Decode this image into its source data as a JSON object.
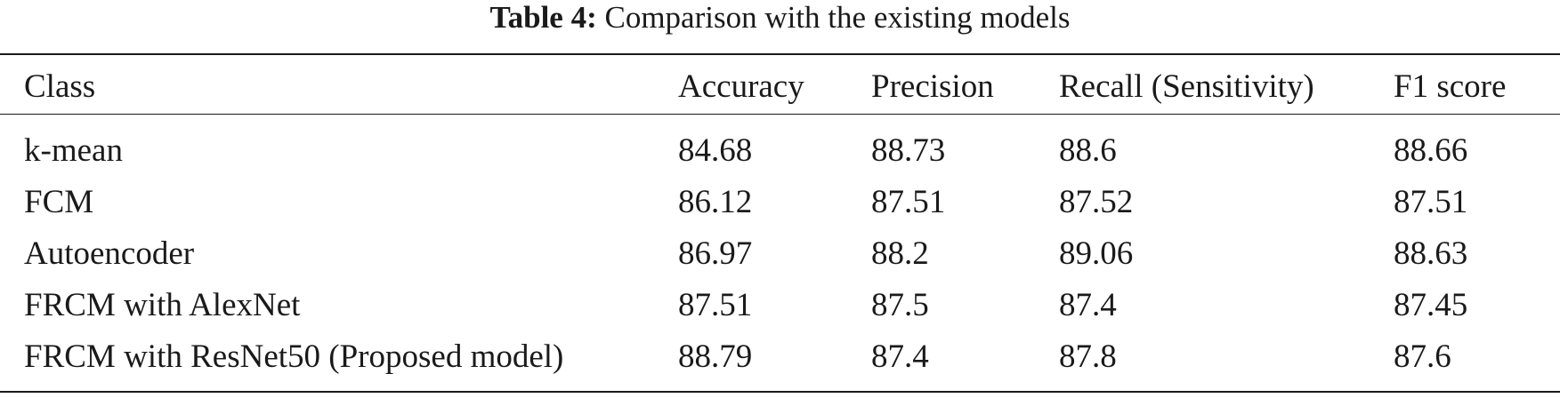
{
  "caption": {
    "label": "Table 4:",
    "text": "Comparison with the existing models"
  },
  "table": {
    "headers": [
      "Class",
      "Accuracy",
      "Precision",
      "Recall (Sensitivity)",
      "F1 score"
    ],
    "rows": [
      [
        "k-mean",
        "84.68",
        "88.73",
        "88.6",
        "88.66"
      ],
      [
        "FCM",
        "86.12",
        "87.51",
        "87.52",
        "87.51"
      ],
      [
        "Autoencoder",
        "86.97",
        "88.2",
        "89.06",
        "88.63"
      ],
      [
        "FRCM with AlexNet",
        "87.51",
        "87.5",
        "87.4",
        "87.45"
      ],
      [
        "FRCM with ResNet50 (Proposed model)",
        "88.79",
        "87.4",
        "87.8",
        "87.6"
      ]
    ]
  }
}
